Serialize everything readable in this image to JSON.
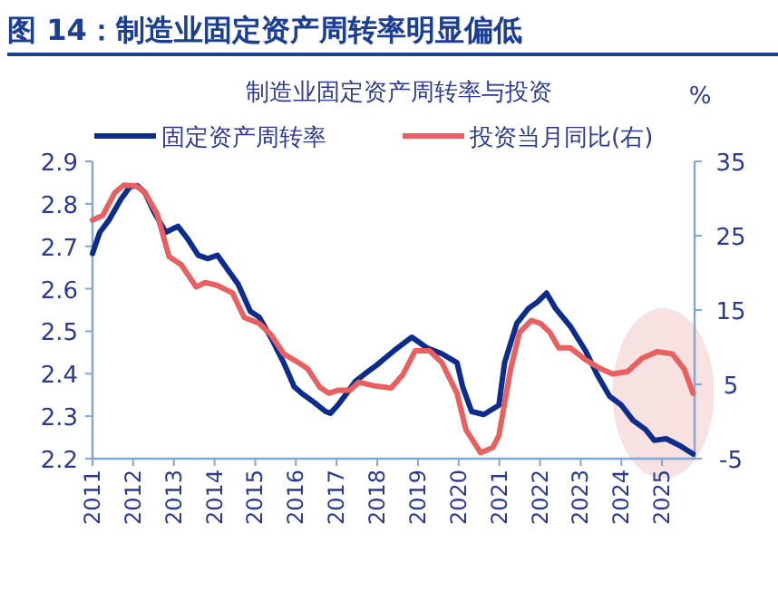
{
  "chart_data": {
    "type": "line",
    "title": "图 14：制造业固定资产周转率明显偏低",
    "subtitle": "制造业固定资产周转率与投资",
    "y2label": "%",
    "legend": "top",
    "xlim": [
      2011,
      2025.8
    ],
    "xticks": [
      2011,
      2012,
      2013,
      2014,
      2015,
      2016,
      2017,
      2018,
      2019,
      2020,
      2021,
      2022,
      2023,
      2024,
      2025
    ],
    "ylim": [
      2.2,
      2.9
    ],
    "yticks": [
      2.2,
      2.3,
      2.4,
      2.5,
      2.6,
      2.7,
      2.8,
      2.9
    ],
    "y2lim": [
      -5,
      35
    ],
    "y2ticks": [
      -5,
      5,
      15,
      25,
      35
    ],
    "series": [
      {
        "name": "固定资产周转率",
        "color": "#0d2c8c",
        "axis": "y",
        "x": [
          2011.0,
          2011.18,
          2011.4,
          2011.7,
          2011.92,
          2012.1,
          2012.29,
          2012.5,
          2012.8,
          2013.1,
          2013.33,
          2013.6,
          2013.84,
          2014.07,
          2014.36,
          2014.58,
          2014.88,
          2015.1,
          2015.4,
          2015.7,
          2015.96,
          2016.14,
          2016.44,
          2016.73,
          2016.85,
          2017.03,
          2017.25,
          2017.47,
          2017.7,
          2017.97,
          2018.41,
          2018.85,
          2019.0,
          2019.22,
          2019.59,
          2019.96,
          2020.1,
          2020.32,
          2020.62,
          2020.99,
          2021.13,
          2021.43,
          2021.72,
          2021.94,
          2022.16,
          2022.38,
          2022.75,
          2023.12,
          2023.41,
          2023.71,
          2024.0,
          2024.29,
          2024.59,
          2024.81,
          2025.1,
          2025.47,
          2025.76
        ],
        "values": [
          2.683,
          2.733,
          2.761,
          2.811,
          2.84,
          2.843,
          2.826,
          2.783,
          2.733,
          2.747,
          2.719,
          2.679,
          2.671,
          2.679,
          2.64,
          2.611,
          2.547,
          2.533,
          2.483,
          2.426,
          2.369,
          2.354,
          2.333,
          2.311,
          2.307,
          2.326,
          2.354,
          2.383,
          2.4,
          2.419,
          2.454,
          2.486,
          2.476,
          2.461,
          2.447,
          2.426,
          2.369,
          2.311,
          2.304,
          2.326,
          2.426,
          2.519,
          2.554,
          2.569,
          2.59,
          2.554,
          2.511,
          2.454,
          2.397,
          2.347,
          2.326,
          2.29,
          2.269,
          2.243,
          2.247,
          2.229,
          2.211
        ]
      },
      {
        "name": "投资当月同比(右)",
        "color": "#e8605f",
        "axis": "y2",
        "x": [
          2011.0,
          2011.25,
          2011.55,
          2011.77,
          2012.07,
          2012.29,
          2012.59,
          2012.88,
          2013.18,
          2013.55,
          2013.77,
          2014.07,
          2014.44,
          2014.73,
          2015.1,
          2015.4,
          2015.7,
          2016.07,
          2016.29,
          2016.59,
          2016.81,
          2017.03,
          2017.33,
          2017.55,
          2017.92,
          2018.21,
          2018.34,
          2018.63,
          2018.93,
          2019.29,
          2019.59,
          2019.96,
          2020.18,
          2020.54,
          2020.84,
          2020.99,
          2021.28,
          2021.5,
          2021.79,
          2022.01,
          2022.24,
          2022.46,
          2022.75,
          2023.12,
          2023.49,
          2023.78,
          2024.15,
          2024.51,
          2024.88,
          2025.25,
          2025.54,
          2025.76
        ],
        "values": [
          27.1,
          27.7,
          30.8,
          31.8,
          31.7,
          30.8,
          27.9,
          22.2,
          21.1,
          18.1,
          18.7,
          18.3,
          17.3,
          14.0,
          13.2,
          11.6,
          9.1,
          7.9,
          7.1,
          4.6,
          3.8,
          4.2,
          4.2,
          5.3,
          4.8,
          4.6,
          4.5,
          6.3,
          9.5,
          9.5,
          7.9,
          3.8,
          -1.1,
          -4.2,
          -3.5,
          -1.9,
          7.1,
          12.0,
          13.6,
          13.2,
          12.0,
          9.9,
          9.9,
          8.3,
          7.1,
          6.4,
          6.7,
          8.5,
          9.4,
          9.1,
          7.1,
          3.8
        ]
      }
    ]
  }
}
